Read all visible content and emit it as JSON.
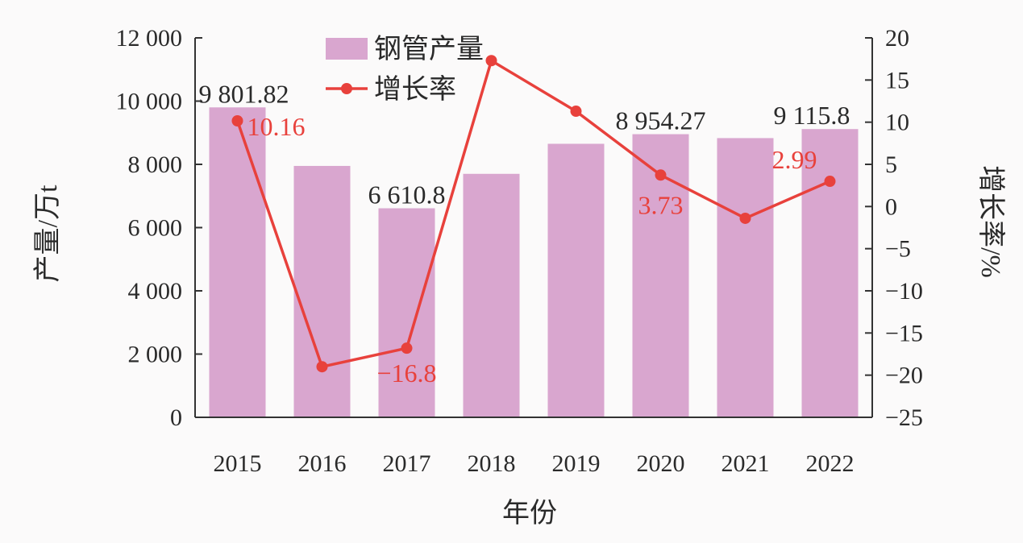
{
  "chart_data": {
    "type": "bar+line",
    "categories": [
      "2015",
      "2016",
      "2017",
      "2018",
      "2019",
      "2020",
      "2021",
      "2022"
    ],
    "xlabel": "年份",
    "ylabel_left": "产量/万t",
    "ylabel_right": "增长率/%",
    "ylim_left": [
      0,
      12000
    ],
    "ylim_right": [
      -25,
      20
    ],
    "yticks_left": [
      "0",
      "2 000",
      "4 000",
      "6 000",
      "8 000",
      "10 000",
      "12 000"
    ],
    "yticks_right": [
      "−25",
      "−20",
      "−15",
      "−10",
      "−5",
      "0",
      "5",
      "10",
      "15",
      "20"
    ],
    "legend_position": "top-left",
    "series": [
      {
        "name": "钢管产量",
        "type": "bar",
        "axis": "left",
        "color": "#d9a6cf",
        "values": [
          9801.82,
          7950,
          6610.8,
          7700,
          8650,
          8954.27,
          8830,
          9115.8
        ],
        "labels": [
          "9 801.82",
          "",
          "6 610.8",
          "",
          "",
          "8 954.27",
          "",
          "9 115.8"
        ]
      },
      {
        "name": "增长率",
        "type": "line",
        "axis": "right",
        "color": "#e8413c",
        "values": [
          10.16,
          -19,
          -16.8,
          17.3,
          11.3,
          3.73,
          -1.4,
          2.99
        ],
        "labels": [
          "10.16",
          "",
          "−16.8",
          "",
          "",
          "3.73",
          "",
          "2.99"
        ]
      }
    ]
  }
}
